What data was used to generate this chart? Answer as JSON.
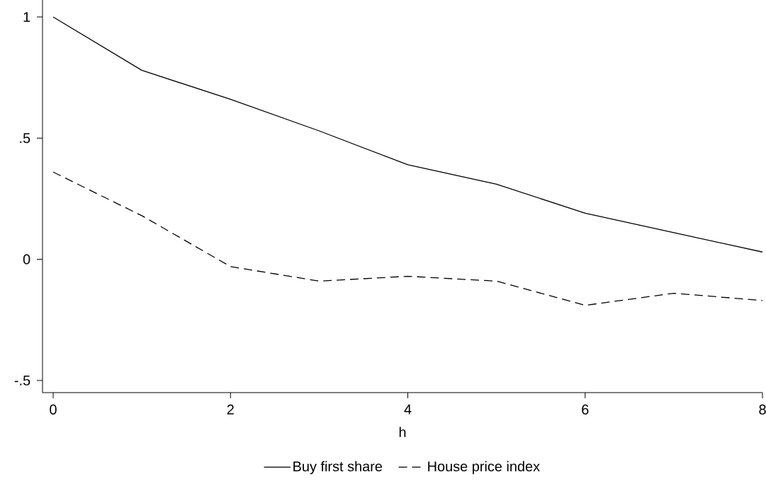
{
  "chart_data": {
    "type": "line",
    "xlabel": "h",
    "x": [
      0,
      1,
      2,
      3,
      4,
      5,
      6,
      7,
      8
    ],
    "series": [
      {
        "name": "Buy first share",
        "color": "#000000",
        "line_style": "solid",
        "values": [
          1.0,
          0.78,
          0.66,
          0.53,
          0.39,
          0.31,
          0.19,
          0.11,
          0.03
        ]
      },
      {
        "name": "House price index",
        "color": "#000000",
        "line_style": "dashed",
        "values": [
          0.36,
          0.18,
          -0.03,
          -0.09,
          -0.07,
          -0.09,
          -0.19,
          -0.14,
          -0.17
        ]
      }
    ],
    "xlim": [
      -0.12,
      8
    ],
    "ylim": [
      -0.55,
      1.07
    ],
    "xticks": [
      0,
      2,
      4,
      6,
      8
    ],
    "yticks": [
      {
        "value": -0.5,
        "label": "-.5"
      },
      0,
      {
        "value": 0.5,
        "label": ".5"
      },
      1
    ],
    "grid": false,
    "legend": "bottom",
    "marker": "none"
  }
}
